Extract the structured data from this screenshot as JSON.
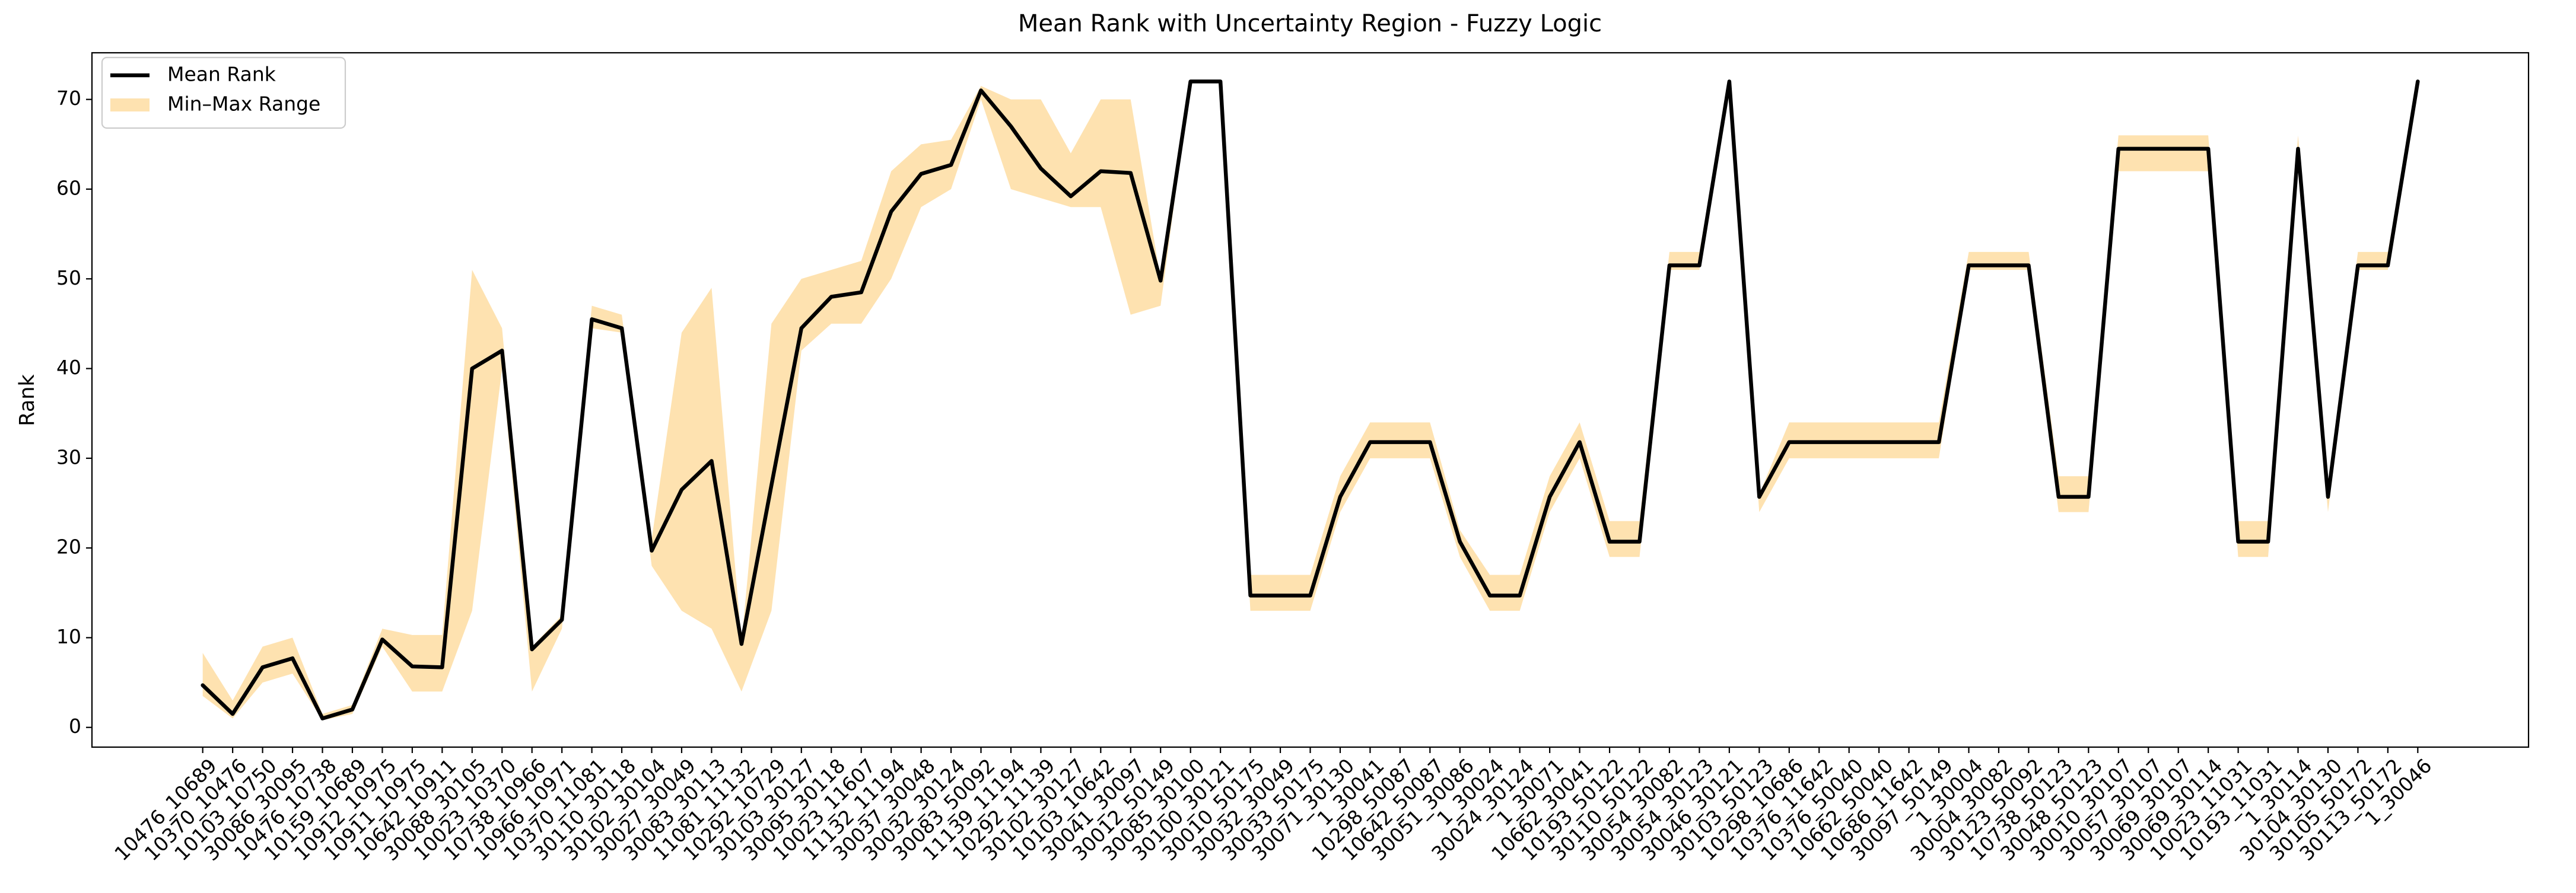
{
  "chart_data": {
    "type": "line",
    "title": "Mean Rank with Uncertainty Region - Fuzzy Logic",
    "ylabel": "Rank",
    "legend": "upper left",
    "categories": [
      "10476_10689",
      "10370_10476",
      "10103_10750",
      "30086_30095",
      "10476_10738",
      "10159_10689",
      "10912_10975",
      "10911_10975",
      "10642_10911",
      "30088_30105",
      "10023_10370",
      "10738_10966",
      "10966_10971",
      "10370_11081",
      "30110_30118",
      "30102_30104",
      "30027_30049",
      "30083_30113",
      "11081_11132",
      "10292_10729",
      "30103_30127",
      "30095_30118",
      "10023_11607",
      "11132_11194",
      "30037_30048",
      "30032_30124",
      "30083_50092",
      "11139_11194",
      "10292_11139",
      "30102_30127",
      "10103_10642",
      "30041_30097",
      "30012_50149",
      "30085_30100",
      "30100_30121",
      "30010_50175",
      "30032_30049",
      "30033_50175",
      "30071_30130",
      "1_30041",
      "10298_50087",
      "10642_50087",
      "30051_30086",
      "1_30024",
      "30024_30124",
      "1_30071",
      "10662_30041",
      "10193_50122",
      "30110_50122",
      "30054_30082",
      "30054_30123",
      "30046_30121",
      "30103_50123",
      "10298_10686",
      "10376_11642",
      "10376_50040",
      "10662_50040",
      "10686_11642",
      "30097_50149",
      "1_30004",
      "30004_30082",
      "30123_50092",
      "10738_50123",
      "30048_50123",
      "30010_30107",
      "30057_30107",
      "30069_30107",
      "30069_30114",
      "10023_11031",
      "10193_11031",
      "1_30114",
      "30104_30130",
      "30105_50172",
      "30113_50172",
      "1_30046"
    ],
    "series": [
      {
        "name": "Mean Rank",
        "color": "#000000",
        "values": [
          4.7,
          1.5,
          6.7,
          7.7,
          1.0,
          2.0,
          9.8,
          6.8,
          6.7,
          40,
          42,
          8.7,
          12,
          45.5,
          44.5,
          19.7,
          26.5,
          29.7,
          9.3,
          27,
          44.5,
          48,
          48.5,
          57.5,
          61.7,
          62.7,
          71,
          67,
          62.3,
          59.2,
          62,
          61.8,
          49.8,
          72,
          72,
          14.7,
          14.7,
          14.7,
          25.7,
          31.8,
          31.8,
          31.8,
          20.7,
          14.7,
          14.7,
          25.7,
          31.8,
          20.7,
          20.7,
          51.5,
          51.5,
          72,
          25.7,
          31.8,
          31.8,
          31.8,
          31.8,
          31.8,
          31.8,
          51.5,
          51.5,
          51.5,
          25.7,
          25.7,
          64.5,
          64.5,
          64.5,
          64.5,
          20.7,
          20.7,
          64.5,
          25.7,
          51.5,
          51.5,
          72
        ]
      }
    ],
    "band": {
      "name": "Min–Max Range",
      "color": "#fee2b0",
      "min": [
        3.5,
        1.0,
        5,
        6,
        0.8,
        1.5,
        9,
        4,
        4,
        13,
        40,
        4,
        11,
        44.5,
        44,
        18,
        13,
        11,
        4,
        13,
        42,
        45,
        45,
        50,
        58,
        60,
        70,
        60,
        59,
        58,
        58,
        46,
        47,
        72,
        72,
        13,
        13,
        13,
        24,
        30,
        30,
        30,
        19,
        13,
        13,
        24,
        30,
        19,
        19,
        51,
        51,
        72,
        24,
        30,
        30,
        30,
        30,
        30,
        30,
        51,
        51,
        51,
        24,
        24,
        62,
        62,
        62,
        62,
        19,
        19,
        63,
        24,
        51,
        51,
        72
      ],
      "max": [
        8.3,
        3,
        9,
        10,
        1.5,
        2.5,
        11,
        10.3,
        10.3,
        51,
        44.5,
        9,
        12.5,
        47,
        46,
        21,
        44,
        49,
        9.5,
        45,
        50,
        51,
        52,
        62,
        65,
        65.5,
        71.5,
        70,
        70,
        64,
        70,
        70,
        50,
        72,
        72,
        17,
        17,
        17,
        28,
        34,
        34,
        34,
        22,
        17,
        17,
        28,
        34,
        23,
        23,
        53,
        53,
        72,
        26,
        34,
        34,
        34,
        34,
        34,
        34,
        53,
        53,
        53,
        28,
        28,
        66,
        66,
        66,
        66,
        23,
        23,
        66,
        27,
        53,
        53,
        72
      ]
    },
    "ylim": [
      -2.2,
      75.2
    ],
    "yticks": [
      0,
      10,
      20,
      30,
      40,
      50,
      60,
      70
    ]
  }
}
